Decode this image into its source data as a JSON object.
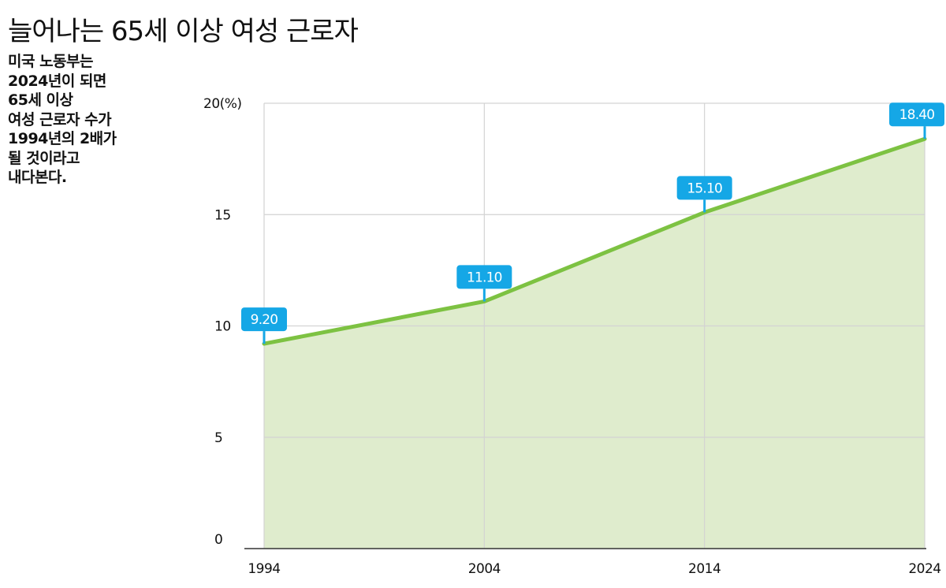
{
  "chart_data": {
    "type": "area",
    "title": "늘어나는 65세 이상 여성 근로자",
    "note_lines": [
      "미국 노동부는",
      "2024년이 되면",
      "65세 이상",
      "여성 근로자 수가",
      "1994년의 2배가",
      "될 것이라고",
      "내다본다."
    ],
    "x": [
      "1994",
      "2004",
      "2014",
      "2024"
    ],
    "values": [
      9.2,
      11.1,
      15.1,
      18.4
    ],
    "data_labels": [
      "9.20",
      "11.10",
      "15.10",
      "18.40"
    ],
    "yticks": [
      0,
      5,
      10,
      15,
      20
    ],
    "ytick_labels": [
      "0",
      "5",
      "10",
      "15",
      "20(%)"
    ],
    "ylim": [
      0,
      20
    ],
    "grid": true,
    "colors": {
      "line": "#7dc242",
      "fill": "#dfeccd",
      "grid": "#d3d3d3",
      "label_bg": "#15a7e6"
    }
  }
}
